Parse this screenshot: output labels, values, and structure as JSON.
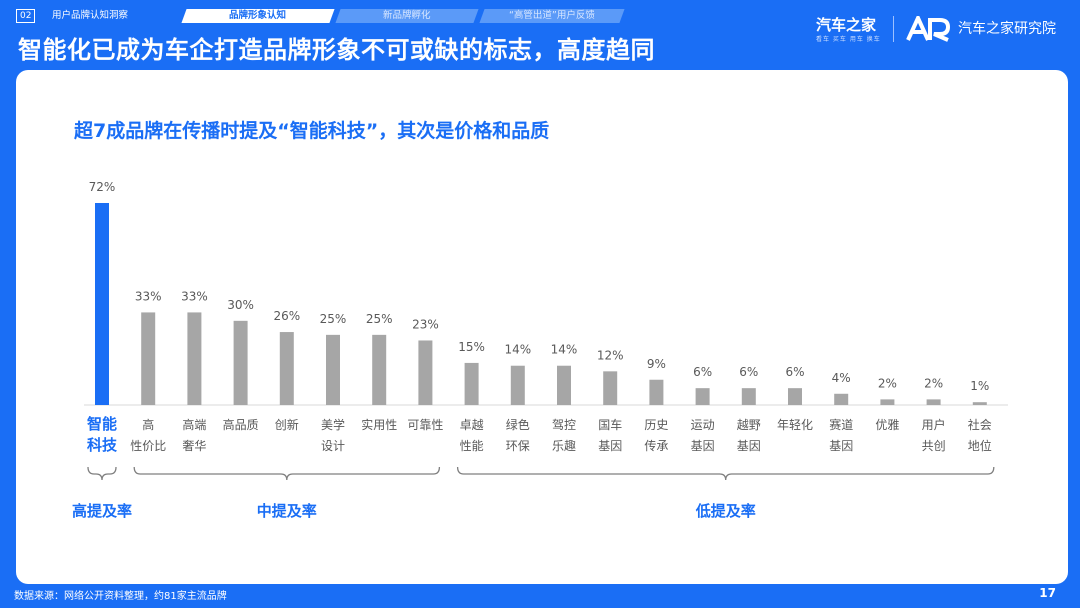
{
  "header": {
    "section_number": "02",
    "section_title": "用户品牌认知洞察",
    "tabs": [
      "品牌形象认知",
      "新品牌孵化",
      "“高管出道”用户反馈"
    ],
    "headline": "智能化已成为车企打造品牌形象不可或缺的标志，高度趋同",
    "logo_main": "汽车之家",
    "logo_sub": "看车 买车 用车 换车",
    "logo_institute": "汽车之家研究院"
  },
  "chart_data": {
    "type": "bar",
    "title": "超7成品牌在传播时提及“智能科技”，其次是价格和品质",
    "categories": [
      [
        "智能",
        "科技"
      ],
      [
        "高",
        "性价比"
      ],
      [
        "高端",
        "奢华"
      ],
      [
        "高品质"
      ],
      [
        "创新"
      ],
      [
        "美学",
        "设计"
      ],
      [
        "实用性"
      ],
      [
        "可靠性"
      ],
      [
        "卓越",
        "性能"
      ],
      [
        "绿色",
        "环保"
      ],
      [
        "驾控",
        "乐趣"
      ],
      [
        "国车",
        "基因"
      ],
      [
        "历史",
        "传承"
      ],
      [
        "运动",
        "基因"
      ],
      [
        "越野",
        "基因"
      ],
      [
        "年轻化"
      ],
      [
        "赛道",
        "基因"
      ],
      [
        "优雅"
      ],
      [
        "用户",
        "共创"
      ],
      [
        "社会",
        "地位"
      ]
    ],
    "values": [
      72,
      33,
      33,
      30,
      26,
      25,
      25,
      23,
      15,
      14,
      14,
      12,
      9,
      6,
      6,
      6,
      4,
      2,
      2,
      1
    ],
    "value_labels": [
      "72%",
      "33%",
      "33%",
      "30%",
      "26%",
      "25%",
      "25%",
      "23%",
      "15%",
      "14%",
      "14%",
      "12%",
      "9%",
      "6%",
      "6%",
      "6%",
      "4%",
      "2%",
      "2%",
      "1%"
    ],
    "highlight_index": 0,
    "groups": [
      {
        "label": "高提及率",
        "from": 0,
        "to": 0
      },
      {
        "label": "中提及率",
        "from": 1,
        "to": 7
      },
      {
        "label": "低提及率",
        "from": 8,
        "to": 19
      }
    ],
    "grid": false,
    "colors": {
      "highlight": "#1a6ef5",
      "bar": "#a6a6a6",
      "label": "#595959",
      "group": "#1a6ef5"
    }
  },
  "footer": {
    "source": "数据来源：网络公开资料整理，约81家主流品牌",
    "page": "17"
  }
}
